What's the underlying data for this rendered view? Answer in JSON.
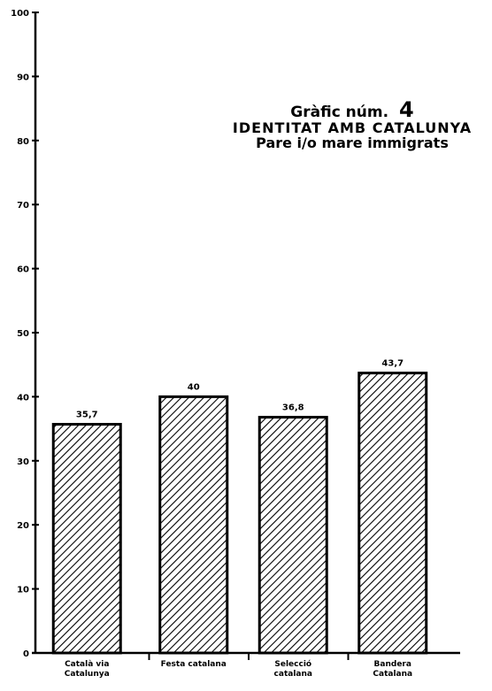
{
  "chart_data": {
    "type": "bar",
    "title_prefix": "Gràfic núm.",
    "title_number": "4",
    "title": "IDENTITAT AMB CATALUNYA",
    "subtitle": "Pare i/o mare immigrats",
    "categories": [
      [
        "Català via",
        "Catalunya"
      ],
      [
        "Festa catalana"
      ],
      [
        "Selecció",
        "catalana"
      ],
      [
        "Bandera",
        "Catalana"
      ]
    ],
    "values": [
      35.7,
      40,
      36.8,
      43.7
    ],
    "value_labels": [
      "35,7",
      "40",
      "36,8",
      "43,7"
    ],
    "ylim": [
      0,
      100
    ],
    "yticks": [
      0,
      10,
      20,
      30,
      40,
      50,
      60,
      70,
      80,
      90,
      100
    ],
    "ytick_labels": [
      "0",
      "10",
      "20",
      "30",
      "40",
      "50",
      "60",
      "70",
      "80",
      "90",
      "100"
    ],
    "grid": false,
    "bar_fill": "hatched",
    "colors": {
      "axis": "#000000",
      "bar_stroke": "#000000",
      "hatch": "#000000",
      "background": "#ffffff"
    }
  }
}
